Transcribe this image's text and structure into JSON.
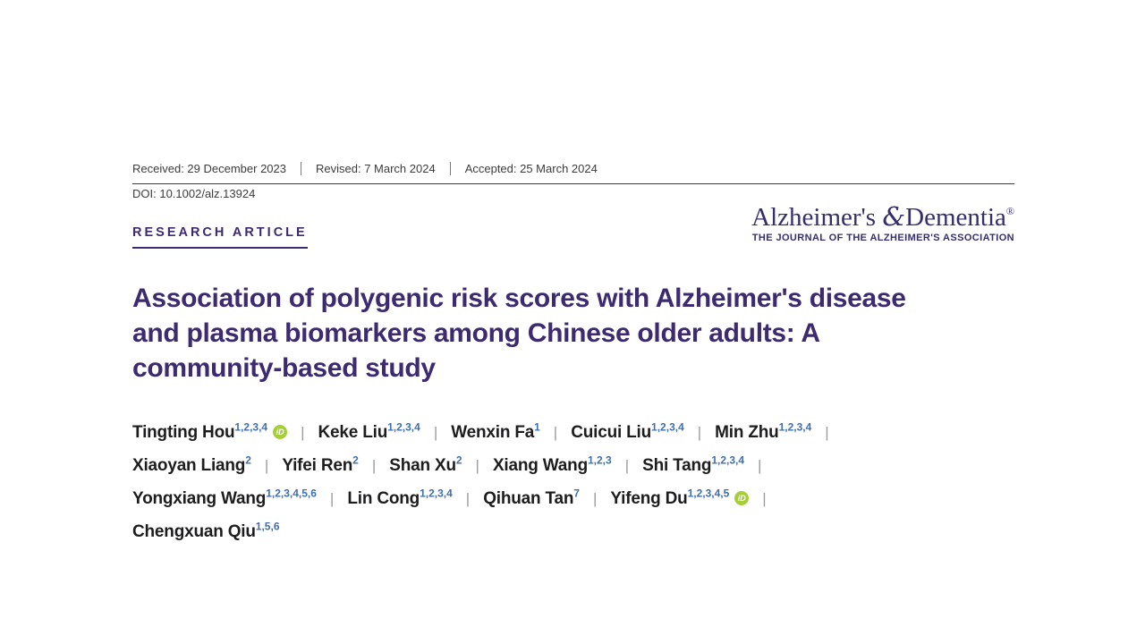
{
  "meta_bar": {
    "received": "Received: 29 December 2023",
    "revised": "Revised: 7 March 2024",
    "accepted": "Accepted: 25 March 2024",
    "doi": "DOI: 10.1002/alz.13924"
  },
  "article_type_label": "RESEARCH ARTICLE",
  "journal_logo": {
    "name_before_amp": "Alzheimer's",
    "ampersand": "&",
    "name_after_amp": "Dementia",
    "registered_mark": "®",
    "subtitle": "THE JOURNAL OF THE ALZHEIMER'S ASSOCIATION"
  },
  "article_title_lines": [
    "Association of polygenic risk scores with Alzheimer's disease",
    "and plasma biomarkers among Chinese older adults: A",
    "community-based study"
  ],
  "author_separator": "|",
  "orcid_icon_label": "iD",
  "authors": [
    {
      "name": "Tingting Hou",
      "affiliations": "1,2,3,4",
      "orcid": true,
      "break_after": false
    },
    {
      "name": "Keke Liu",
      "affiliations": "1,2,3,4",
      "orcid": false,
      "break_after": false
    },
    {
      "name": "Wenxin Fa",
      "affiliations": "1",
      "orcid": false,
      "break_after": false
    },
    {
      "name": "Cuicui Liu",
      "affiliations": "1,2,3,4",
      "orcid": false,
      "break_after": false
    },
    {
      "name": "Min Zhu",
      "affiliations": "1,2,3,4",
      "orcid": false,
      "break_after": true
    },
    {
      "name": "Xiaoyan Liang",
      "affiliations": "2",
      "orcid": false,
      "break_after": false
    },
    {
      "name": "Yifei Ren",
      "affiliations": "2",
      "orcid": false,
      "break_after": false
    },
    {
      "name": "Shan Xu",
      "affiliations": "2",
      "orcid": false,
      "break_after": false
    },
    {
      "name": "Xiang Wang",
      "affiliations": "1,2,3",
      "orcid": false,
      "break_after": false
    },
    {
      "name": "Shi Tang",
      "affiliations": "1,2,3,4",
      "orcid": false,
      "break_after": true
    },
    {
      "name": "Yongxiang Wang",
      "affiliations": "1,2,3,4,5,6",
      "orcid": false,
      "break_after": false
    },
    {
      "name": "Lin Cong",
      "affiliations": "1,2,3,4",
      "orcid": false,
      "break_after": false
    },
    {
      "name": "Qihuan Tan",
      "affiliations": "7",
      "orcid": false,
      "break_after": false
    },
    {
      "name": "Yifeng Du",
      "affiliations": "1,2,3,4,5",
      "orcid": true,
      "break_after": true
    },
    {
      "name": "Chengxuan Qiu",
      "affiliations": "1,5,6",
      "orcid": false,
      "break_after": false
    }
  ],
  "colors": {
    "journal_purple": "#352e6e",
    "title_purple": "#3d2a70",
    "superscript_blue": "#3f6fad",
    "orcid_green": "#a6ce39",
    "meta_text_gray": "#3c3c3c",
    "author_text": "#1d1d1f",
    "separator_gray": "#9b9b9b"
  }
}
